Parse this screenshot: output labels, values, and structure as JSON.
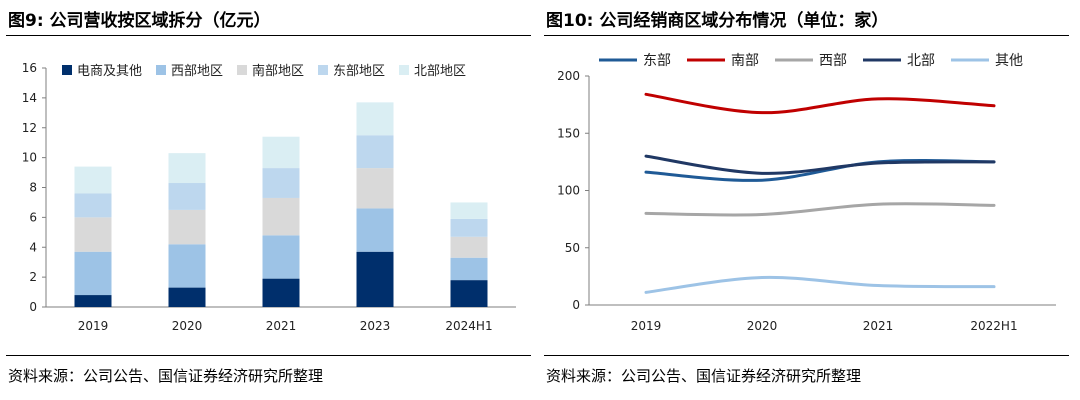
{
  "left": {
    "title": "图9: 公司营收按区域拆分（亿元）",
    "source": "资料来源：公司公告、国信证券经济研究所整理"
  },
  "right": {
    "title": "图10: 公司经销商区域分布情况（单位：家）",
    "source": "资料来源：公司公告、国信证券经济研究所整理"
  },
  "chart_data": [
    {
      "type": "bar",
      "stacked": true,
      "title": "图9: 公司营收按区域拆分（亿元）",
      "categories": [
        "2019",
        "2020",
        "2021",
        "2023",
        "2024H1"
      ],
      "ylim": [
        0,
        16
      ],
      "yticks": [
        0,
        2,
        4,
        6,
        8,
        10,
        12,
        14,
        16
      ],
      "legend_position": "top",
      "grid": false,
      "series": [
        {
          "name": "电商及其他",
          "color": "#002f6c",
          "values": [
            0.8,
            1.3,
            1.9,
            3.7,
            1.8
          ]
        },
        {
          "name": "西部地区",
          "color": "#9dc3e6",
          "values": [
            2.9,
            2.9,
            2.9,
            2.9,
            1.5
          ]
        },
        {
          "name": "南部地区",
          "color": "#d9d9d9",
          "values": [
            2.3,
            2.3,
            2.5,
            2.7,
            1.4
          ]
        },
        {
          "name": "东部地区",
          "color": "#bdd7ee",
          "values": [
            1.6,
            1.8,
            2.0,
            2.2,
            1.2
          ]
        },
        {
          "name": "北部地区",
          "color": "#daeef3",
          "values": [
            1.8,
            2.0,
            2.1,
            2.2,
            1.1
          ]
        }
      ]
    },
    {
      "type": "line",
      "title": "图10: 公司经销商区域分布情况（单位：家）",
      "categories": [
        "2019",
        "2020",
        "2021",
        "2022H1"
      ],
      "ylim": [
        0,
        200
      ],
      "yticks": [
        0,
        50,
        100,
        150,
        200
      ],
      "legend_position": "top",
      "grid": false,
      "series": [
        {
          "name": "东部",
          "color": "#1f5a96",
          "values": [
            116,
            109,
            125,
            125
          ]
        },
        {
          "name": "南部",
          "color": "#c00000",
          "values": [
            184,
            168,
            180,
            174
          ]
        },
        {
          "name": "西部",
          "color": "#a6a6a6",
          "values": [
            80,
            79,
            88,
            87
          ]
        },
        {
          "name": "北部",
          "color": "#203864",
          "values": [
            130,
            115,
            124,
            125
          ]
        },
        {
          "name": "其他",
          "color": "#9dc3e6",
          "values": [
            11,
            24,
            17,
            16
          ]
        }
      ]
    }
  ]
}
